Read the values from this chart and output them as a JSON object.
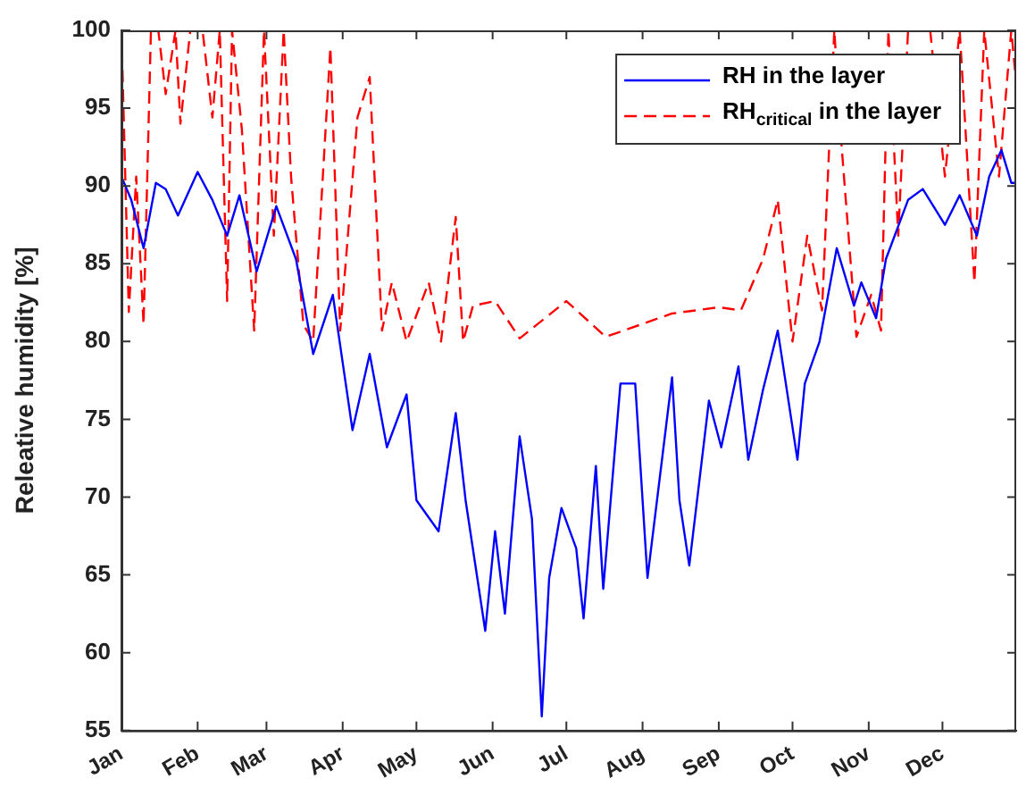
{
  "chart_data": {
    "type": "line",
    "ylabel": "Releative humidity [%]",
    "xlim": [
      "--01-01",
      "--12-31"
    ],
    "xticks": [
      {
        "value": "--01-01",
        "label": "Jan"
      },
      {
        "value": "--02-01",
        "label": "Feb"
      },
      {
        "value": "--03-01",
        "label": "Mar"
      },
      {
        "value": "--04-01",
        "label": "Apr"
      },
      {
        "value": "--05-01",
        "label": "May"
      },
      {
        "value": "--06-01",
        "label": "Jun"
      },
      {
        "value": "--07-01",
        "label": "Jul"
      },
      {
        "value": "--08-01",
        "label": "Aug"
      },
      {
        "value": "--09-01",
        "label": "Sep"
      },
      {
        "value": "--10-01",
        "label": "Oct"
      },
      {
        "value": "--11-01",
        "label": "Nov"
      },
      {
        "value": "--12-01",
        "label": "Dec"
      }
    ],
    "ylim": [
      55,
      100
    ],
    "yticks": [
      55,
      60,
      65,
      70,
      75,
      80,
      85,
      90,
      95,
      100
    ],
    "grid": false,
    "legend": "top right",
    "marker": "none",
    "series": [
      {
        "name": "RH in the layer",
        "color": "#0000ff",
        "line_style": "solid",
        "x": [
          "--01-01",
          "--01-05",
          "--01-10",
          "--01-15",
          "--01-19",
          "--01-24",
          "--02-01",
          "--02-07",
          "--02-13",
          "--02-18",
          "--02-25",
          "--03-05",
          "--03-13",
          "--03-20",
          "--03-28",
          "--04-05",
          "--04-12",
          "--04-19",
          "--04-27",
          "--05-01",
          "--05-10",
          "--05-17",
          "--05-21",
          "--05-29",
          "--06-02",
          "--06-06",
          "--06-12",
          "--06-17",
          "--06-21",
          "--06-24",
          "--06-29",
          "--07-05",
          "--07-08",
          "--07-13",
          "--07-16",
          "--07-23",
          "--07-29",
          "--08-03",
          "--08-13",
          "--08-16",
          "--08-20",
          "--08-28",
          "--09-02",
          "--09-09",
          "--09-13",
          "--09-19",
          "--09-25",
          "--10-03",
          "--10-06",
          "--10-12",
          "--10-19",
          "--10-26",
          "--10-29",
          "--11-04",
          "--11-08",
          "--11-17",
          "--11-23",
          "--12-02",
          "--12-08",
          "--12-15",
          "--12-20",
          "--12-25",
          "--12-29",
          "--12-31"
        ],
        "values": [
          90.6,
          89.1,
          86.0,
          90.2,
          89.8,
          88.1,
          90.9,
          89.1,
          86.8,
          89.4,
          84.5,
          88.7,
          85.3,
          79.2,
          83.0,
          74.3,
          79.2,
          73.2,
          76.6,
          69.8,
          67.8,
          75.4,
          69.8,
          61.4,
          67.8,
          62.5,
          73.9,
          68.6,
          55.9,
          64.8,
          69.3,
          66.7,
          62.2,
          72.0,
          64.1,
          77.3,
          77.3,
          64.8,
          77.7,
          69.8,
          65.6,
          76.2,
          73.2,
          78.4,
          72.4,
          76.9,
          80.7,
          72.4,
          77.3,
          80.0,
          86.0,
          82.3,
          83.8,
          81.5,
          85.3,
          89.1,
          89.8,
          87.5,
          89.4,
          86.8,
          90.6,
          92.3,
          90.2,
          90.2
        ]
      },
      {
        "name": "RH$_{critical}$ in the layer",
        "color": "#ff0000",
        "line_style": "dashed",
        "x": [
          "--01-01",
          "--01-04",
          "--01-07",
          "--01-10",
          "--01-13",
          "--01-16",
          "--01-19",
          "--01-23",
          "--01-25",
          "--01-29",
          "--02-03",
          "--02-07",
          "--02-10",
          "--02-13",
          "--02-15",
          "--02-19",
          "--02-24",
          "--02-28",
          "--03-04",
          "--03-08",
          "--03-11",
          "--03-16",
          "--03-20",
          "--03-27",
          "--03-31",
          "--04-07",
          "--04-12",
          "--04-17",
          "--04-21",
          "--04-27",
          "--05-06",
          "--05-11",
          "--05-17",
          "--05-20",
          "--05-24",
          "--06-02",
          "--06-12",
          "--07-01",
          "--07-17",
          "--08-13",
          "--09-01",
          "--09-10",
          "--09-19",
          "--09-25",
          "--10-01",
          "--10-07",
          "--10-13",
          "--10-18",
          "--10-21",
          "--10-27",
          "--11-02",
          "--11-06",
          "--11-09",
          "--11-13",
          "--11-17",
          "--11-23",
          "--11-26",
          "--12-02",
          "--12-08",
          "--12-14",
          "--12-18",
          "--12-24",
          "--12-29",
          "--12-31"
        ],
        "values": [
          100,
          81.9,
          90.6,
          81.1,
          100,
          100,
          95.9,
          100,
          94.0,
          100,
          100,
          94.4,
          100,
          82.6,
          100,
          93.6,
          80.7,
          100,
          86.8,
          100,
          90.6,
          81.1,
          80.0,
          98.9,
          80.7,
          94.4,
          97.0,
          80.7,
          83.8,
          80.0,
          83.8,
          80.0,
          88.0,
          80.0,
          82.3,
          82.6,
          80.2,
          82.6,
          80.3,
          81.8,
          82.2,
          82.0,
          85.3,
          89.1,
          80.0,
          86.8,
          82.0,
          100,
          92.5,
          80.3,
          83.0,
          80.7,
          100,
          86.8,
          100,
          null,
          100,
          90.6,
          100,
          83.8,
          100,
          90.6,
          100,
          96.6
        ]
      }
    ]
  }
}
